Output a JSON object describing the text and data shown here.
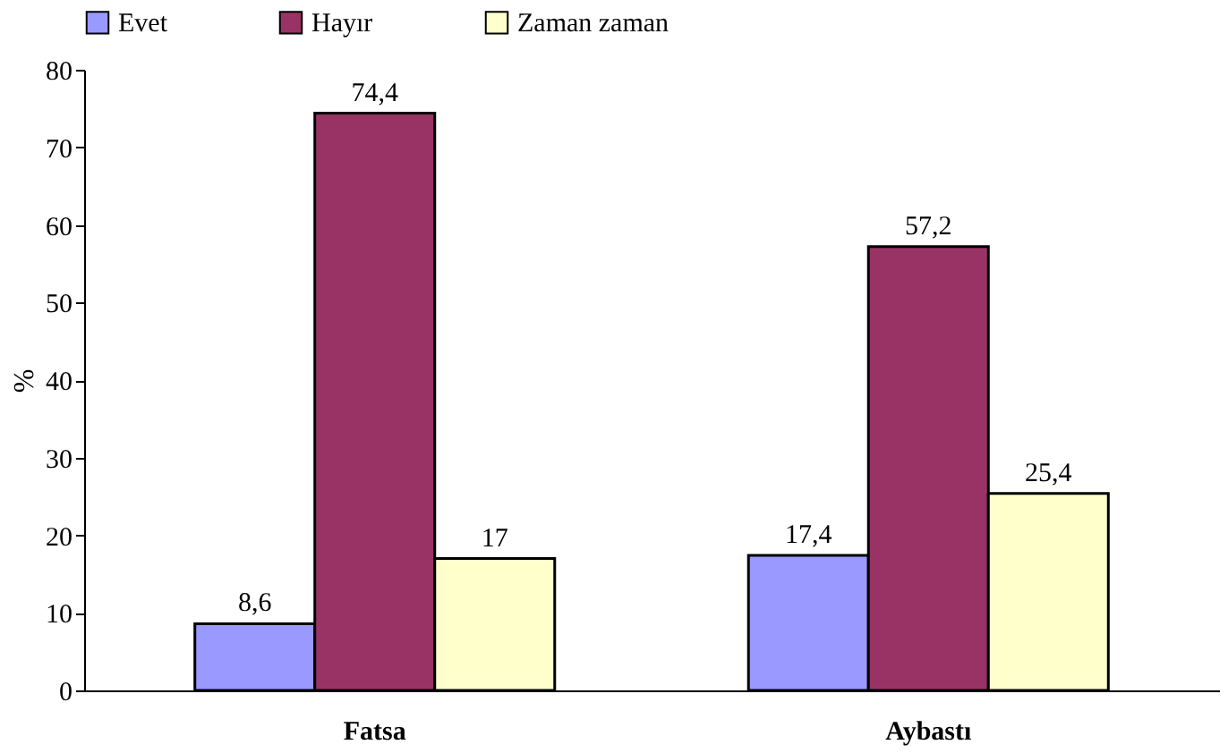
{
  "chart_data": {
    "type": "bar",
    "ylabel": "%",
    "categories": [
      "Fatsa",
      "Aybastı"
    ],
    "series": [
      {
        "name": "Evet",
        "color": "#9999ff",
        "values": [
          8.6,
          17.4
        ],
        "value_labels": [
          "8,6",
          "17,4"
        ]
      },
      {
        "name": "Hayır",
        "color": "#993366",
        "values": [
          74.4,
          57.2
        ],
        "value_labels": [
          "74,4",
          "57,2"
        ]
      },
      {
        "name": "Zaman zaman",
        "color": "#ffffcc",
        "values": [
          17,
          25.4
        ],
        "value_labels": [
          "17",
          "25,4"
        ]
      }
    ],
    "ylim": [
      0,
      80
    ],
    "yticks": [
      0,
      10,
      20,
      30,
      40,
      50,
      60,
      70,
      80
    ],
    "grid": false,
    "legend": "top"
  }
}
